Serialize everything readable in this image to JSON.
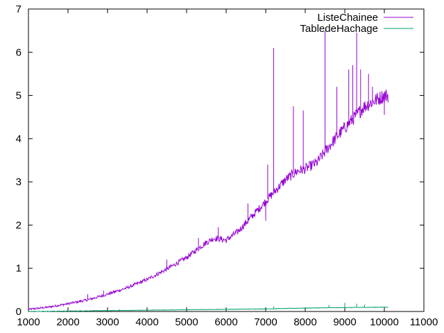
{
  "chart_data": {
    "type": "line",
    "title": "",
    "xlabel": "",
    "ylabel": "",
    "xlim": [
      1000,
      11000
    ],
    "ylim": [
      0,
      7
    ],
    "xticks": [
      1000,
      2000,
      3000,
      4000,
      5000,
      6000,
      7000,
      8000,
      9000,
      10000,
      11000
    ],
    "yticks": [
      0,
      1,
      2,
      3,
      4,
      5,
      6,
      7
    ],
    "grid": false,
    "legend_position": "top-right",
    "series": [
      {
        "name": "ListeChainee",
        "color": "#9400d3",
        "points": [
          [
            1000,
            0.05
          ],
          [
            1500,
            0.1
          ],
          [
            2000,
            0.18
          ],
          [
            2500,
            0.27
          ],
          [
            3000,
            0.4
          ],
          [
            3500,
            0.55
          ],
          [
            4000,
            0.74
          ],
          [
            4500,
            0.98
          ],
          [
            5000,
            1.25
          ],
          [
            5500,
            1.6
          ],
          [
            5700,
            1.7
          ],
          [
            6000,
            1.65
          ],
          [
            6300,
            1.85
          ],
          [
            6500,
            2.05
          ],
          [
            6800,
            2.35
          ],
          [
            7000,
            2.55
          ],
          [
            7300,
            2.85
          ],
          [
            7500,
            3.05
          ],
          [
            7800,
            3.25
          ],
          [
            8000,
            3.3
          ],
          [
            8300,
            3.45
          ],
          [
            8500,
            3.7
          ],
          [
            8800,
            4.05
          ],
          [
            9000,
            4.25
          ],
          [
            9300,
            4.55
          ],
          [
            9500,
            4.75
          ],
          [
            9800,
            4.9
          ],
          [
            10000,
            5.0
          ],
          [
            10100,
            5.0
          ]
        ],
        "spikes": [
          [
            2500,
            0.4
          ],
          [
            2900,
            0.48
          ],
          [
            4500,
            1.2
          ],
          [
            5300,
            1.7
          ],
          [
            5800,
            1.95
          ],
          [
            6550,
            2.5
          ],
          [
            7050,
            3.4
          ],
          [
            7200,
            6.1
          ],
          [
            7700,
            4.75
          ],
          [
            7950,
            4.65
          ],
          [
            8500,
            6.5
          ],
          [
            8800,
            5.2
          ],
          [
            9100,
            5.6
          ],
          [
            9200,
            5.7
          ],
          [
            9300,
            6.45
          ],
          [
            9400,
            5.6
          ],
          [
            9600,
            5.5
          ],
          [
            9700,
            5.2
          ]
        ],
        "dips": [
          [
            7000,
            2.1
          ],
          [
            10000,
            4.55
          ]
        ]
      },
      {
        "name": "TabledeHachage",
        "color": "#009e73",
        "points": [
          [
            1000,
            0.0
          ],
          [
            2000,
            0.01
          ],
          [
            3000,
            0.02
          ],
          [
            4000,
            0.03
          ],
          [
            5000,
            0.04
          ],
          [
            6000,
            0.05
          ],
          [
            7000,
            0.06
          ],
          [
            8000,
            0.08
          ],
          [
            9000,
            0.09
          ],
          [
            10000,
            0.1
          ],
          [
            10100,
            0.1
          ]
        ],
        "spikes": [
          [
            3300,
            0.05
          ],
          [
            7200,
            0.12
          ],
          [
            8600,
            0.15
          ],
          [
            9000,
            0.2
          ],
          [
            9300,
            0.18
          ],
          [
            9500,
            0.16
          ]
        ],
        "dips": []
      }
    ]
  }
}
